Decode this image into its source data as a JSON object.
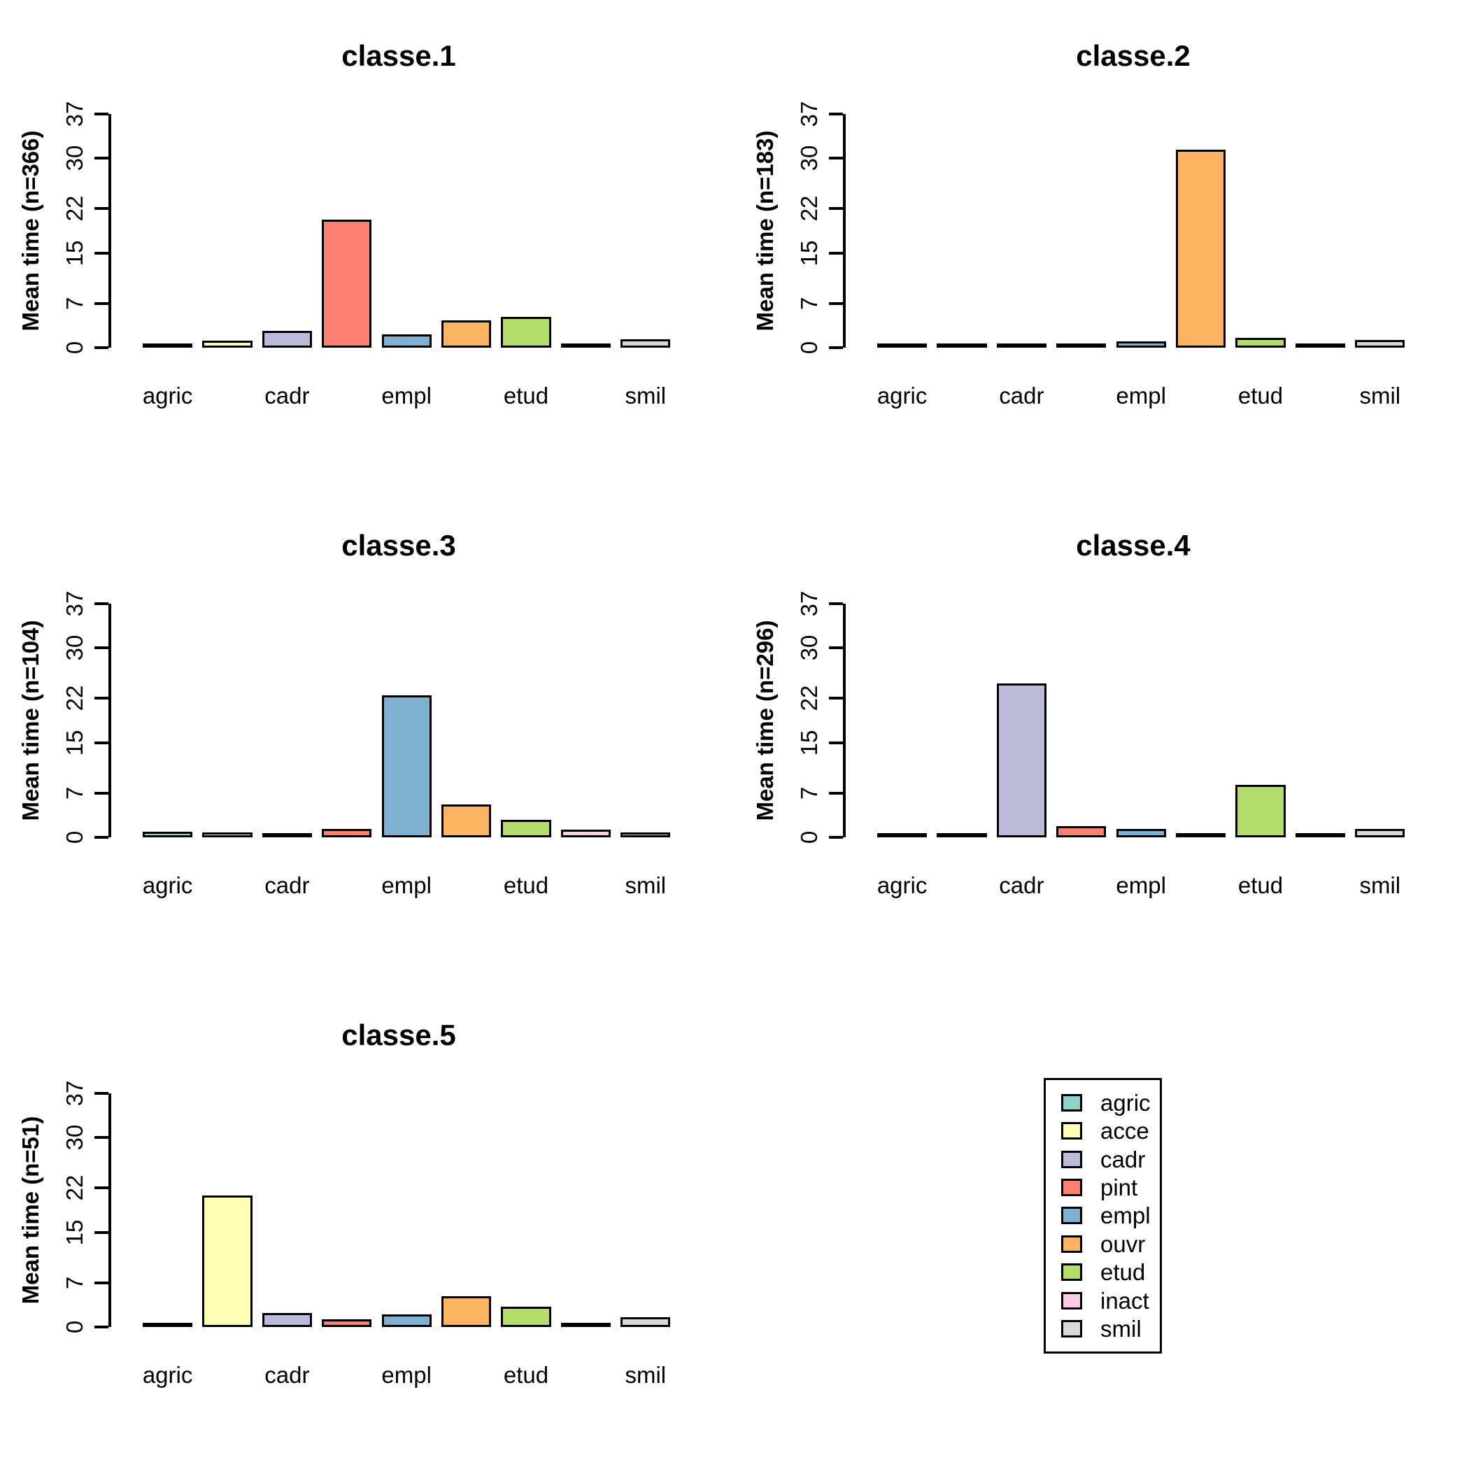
{
  "palette": {
    "agric": "#8DD3C7",
    "acce": "#FFFFB3",
    "cadr": "#BEBADA",
    "pint": "#FB8072",
    "empl": "#80B1D3",
    "ouvr": "#FDB462",
    "etud": "#B3DE69",
    "inact": "#FCCDE5",
    "smil": "#D9D9D9"
  },
  "chart_data": [
    {
      "type": "bar",
      "title": "classe.1",
      "ylabel": "Mean time (n=366)",
      "categories": [
        "agric",
        "acce",
        "cadr",
        "pint",
        "empl",
        "ouvr",
        "etud",
        "inact",
        "smil"
      ],
      "values": [
        0.1,
        1.1,
        2.7,
        20.3,
        2.1,
        4.3,
        4.9,
        0.3,
        1.3
      ],
      "yticks": [
        0,
        7,
        15,
        22,
        30,
        37
      ],
      "ylim": [
        0,
        37
      ],
      "xtick_labels": [
        "agric",
        "cadr",
        "empl",
        "etud",
        "smil"
      ],
      "grid": false
    },
    {
      "type": "bar",
      "title": "classe.2",
      "ylabel": "Mean time (n=183)",
      "categories": [
        "agric",
        "acce",
        "cadr",
        "pint",
        "empl",
        "ouvr",
        "etud",
        "inact",
        "smil"
      ],
      "values": [
        0.6,
        0.5,
        0.1,
        0.3,
        1.0,
        31.3,
        1.5,
        0.4,
        1.2
      ],
      "yticks": [
        0,
        7,
        15,
        22,
        30,
        37
      ],
      "ylim": [
        0,
        37
      ],
      "xtick_labels": [
        "agric",
        "cadr",
        "empl",
        "etud",
        "smil"
      ],
      "grid": false
    },
    {
      "type": "bar",
      "title": "classe.3",
      "ylabel": "Mean time (n=104)",
      "categories": [
        "agric",
        "acce",
        "cadr",
        "pint",
        "empl",
        "ouvr",
        "etud",
        "inact",
        "smil"
      ],
      "values": [
        0.9,
        0.8,
        0.5,
        1.3,
        22.5,
        5.2,
        2.8,
        1.2,
        0.8
      ],
      "yticks": [
        0,
        7,
        15,
        22,
        30,
        37
      ],
      "ylim": [
        0,
        37
      ],
      "xtick_labels": [
        "agric",
        "cadr",
        "empl",
        "etud",
        "smil"
      ],
      "grid": false
    },
    {
      "type": "bar",
      "title": "classe.4",
      "ylabel": "Mean time (n=296)",
      "categories": [
        "agric",
        "acce",
        "cadr",
        "pint",
        "empl",
        "ouvr",
        "etud",
        "inact",
        "smil"
      ],
      "values": [
        0.05,
        0.2,
        24.4,
        1.8,
        1.3,
        0.3,
        8.3,
        0.2,
        1.3
      ],
      "yticks": [
        0,
        7,
        15,
        22,
        30,
        37
      ],
      "ylim": [
        0,
        37
      ],
      "xtick_labels": [
        "agric",
        "cadr",
        "empl",
        "etud",
        "smil"
      ],
      "grid": false
    },
    {
      "type": "bar",
      "title": "classe.5",
      "ylabel": "Mean time (n=51)",
      "categories": [
        "agric",
        "acce",
        "cadr",
        "pint",
        "empl",
        "ouvr",
        "etud",
        "inact",
        "smil"
      ],
      "values": [
        0.5,
        20.8,
        2.2,
        1.2,
        2.0,
        4.9,
        3.2,
        0.3,
        1.5
      ],
      "yticks": [
        0,
        7,
        15,
        22,
        30,
        37
      ],
      "ylim": [
        0,
        37
      ],
      "xtick_labels": [
        "agric",
        "cadr",
        "empl",
        "etud",
        "smil"
      ],
      "grid": false
    }
  ],
  "legend": {
    "position": "bottom-right-cell",
    "entries": [
      {
        "label": "agric",
        "color": "#8DD3C7"
      },
      {
        "label": "acce",
        "color": "#FFFFB3"
      },
      {
        "label": "cadr",
        "color": "#BEBADA"
      },
      {
        "label": "pint",
        "color": "#FB8072"
      },
      {
        "label": "empl",
        "color": "#80B1D3"
      },
      {
        "label": "ouvr",
        "color": "#FDB462"
      },
      {
        "label": "etud",
        "color": "#B3DE69"
      },
      {
        "label": "inact",
        "color": "#FCCDE5"
      },
      {
        "label": "smil",
        "color": "#D9D9D9"
      }
    ]
  }
}
